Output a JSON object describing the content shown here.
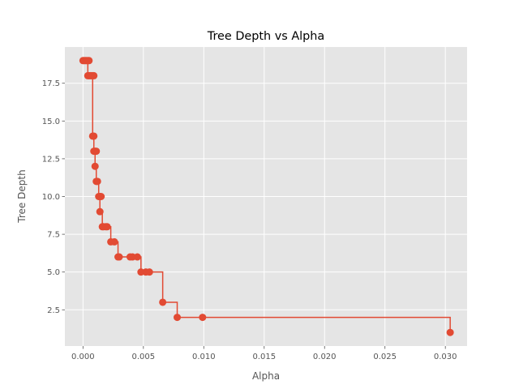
{
  "chart_data": {
    "type": "line",
    "title": "Tree Depth vs Alpha",
    "xlabel": "Alpha",
    "ylabel": "Tree Depth",
    "xlim": [
      -0.0015,
      0.0318
    ],
    "ylim": [
      0.1,
      19.9
    ],
    "grid": true,
    "step": "post",
    "marker": "circle",
    "colors": {
      "series": "#e24a33",
      "plot_bg": "#e5e5e5",
      "grid": "#ffffff",
      "tick": "#555555"
    },
    "x_ticks": [
      0.0,
      0.005,
      0.01,
      0.015,
      0.02,
      0.025,
      0.03
    ],
    "x_tick_labels": [
      "0.000",
      "0.005",
      "0.010",
      "0.015",
      "0.020",
      "0.025",
      "0.030"
    ],
    "y_ticks": [
      2.5,
      5.0,
      7.5,
      10.0,
      12.5,
      15.0,
      17.5
    ],
    "y_tick_labels": [
      "2.5",
      "5.0",
      "7.5",
      "10.0",
      "12.5",
      "15.0",
      "17.5"
    ],
    "series": [
      {
        "x": [
          0.0,
          0.0001,
          0.0002,
          0.0003,
          0.0004,
          0.0005,
          0.0004,
          0.0005,
          0.0006,
          0.0007,
          0.0008,
          0.0009,
          0.0008,
          0.0009,
          0.0009,
          0.001,
          0.0011,
          0.001,
          0.0011,
          0.0012,
          0.0013,
          0.0014,
          0.0015,
          0.0014,
          0.0016,
          0.0017,
          0.0019,
          0.002,
          0.0023,
          0.0026,
          0.0029,
          0.003,
          0.0039,
          0.0041,
          0.0045,
          0.0048,
          0.0052,
          0.0055,
          0.0066,
          0.0078,
          0.0099,
          0.0304
        ],
        "y": [
          19,
          19,
          19,
          19,
          19,
          19,
          18,
          18,
          18,
          18,
          18,
          18,
          14,
          14,
          13,
          13,
          13,
          12,
          11,
          11,
          10,
          10,
          10,
          9,
          8,
          8,
          8,
          8,
          7,
          7,
          6,
          6,
          6,
          6,
          6,
          5,
          5,
          5,
          3,
          2,
          2,
          1
        ]
      }
    ]
  }
}
